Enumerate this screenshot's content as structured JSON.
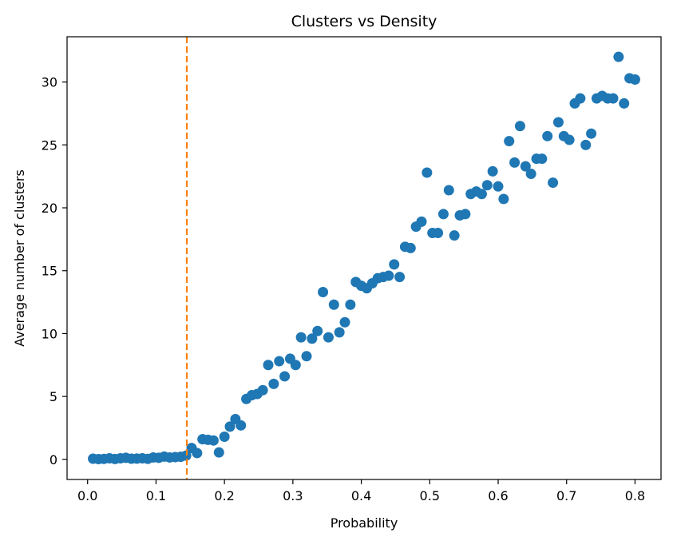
{
  "chart_data": {
    "type": "scatter",
    "title": "Clusters vs Density",
    "xlabel": "Probability",
    "ylabel": "Average number of clusters",
    "xlim": [
      -0.03,
      0.838
    ],
    "ylim": [
      -1.6,
      33.6
    ],
    "xticks": [
      0.0,
      0.1,
      0.2,
      0.3,
      0.4,
      0.5,
      0.6,
      0.7,
      0.8
    ],
    "xtick_labels": [
      "0.0",
      "0.1",
      "0.2",
      "0.3",
      "0.4",
      "0.5",
      "0.6",
      "0.7",
      "0.8"
    ],
    "yticks": [
      0,
      5,
      10,
      15,
      20,
      25,
      30
    ],
    "ytick_labels": [
      "0",
      "5",
      "10",
      "15",
      "20",
      "25",
      "30"
    ],
    "grid": false,
    "threshold_line": {
      "x": 0.145,
      "style": "dashed",
      "color": "#ff7f0e"
    },
    "series": [
      {
        "color": "#1f77b4",
        "points": [
          [
            0.008,
            0.05
          ],
          [
            0.016,
            0.02
          ],
          [
            0.024,
            0.04
          ],
          [
            0.032,
            0.08
          ],
          [
            0.04,
            0.03
          ],
          [
            0.048,
            0.08
          ],
          [
            0.056,
            0.12
          ],
          [
            0.064,
            0.05
          ],
          [
            0.072,
            0.06
          ],
          [
            0.08,
            0.08
          ],
          [
            0.088,
            0.04
          ],
          [
            0.096,
            0.15
          ],
          [
            0.104,
            0.12
          ],
          [
            0.112,
            0.22
          ],
          [
            0.12,
            0.15
          ],
          [
            0.128,
            0.18
          ],
          [
            0.136,
            0.2
          ],
          [
            0.144,
            0.3
          ],
          [
            0.152,
            0.9
          ],
          [
            0.16,
            0.5
          ],
          [
            0.168,
            1.6
          ],
          [
            0.176,
            1.55
          ],
          [
            0.184,
            1.5
          ],
          [
            0.192,
            0.55
          ],
          [
            0.2,
            1.8
          ],
          [
            0.208,
            2.6
          ],
          [
            0.216,
            3.2
          ],
          [
            0.224,
            2.7
          ],
          [
            0.232,
            4.8
          ],
          [
            0.24,
            5.1
          ],
          [
            0.248,
            5.2
          ],
          [
            0.256,
            5.5
          ],
          [
            0.264,
            7.5
          ],
          [
            0.272,
            6.0
          ],
          [
            0.28,
            7.8
          ],
          [
            0.288,
            6.6
          ],
          [
            0.296,
            8.0
          ],
          [
            0.304,
            7.5
          ],
          [
            0.312,
            9.7
          ],
          [
            0.32,
            8.2
          ],
          [
            0.328,
            9.6
          ],
          [
            0.336,
            10.2
          ],
          [
            0.344,
            13.3
          ],
          [
            0.352,
            9.7
          ],
          [
            0.36,
            12.3
          ],
          [
            0.368,
            10.1
          ],
          [
            0.376,
            10.9
          ],
          [
            0.384,
            12.3
          ],
          [
            0.392,
            14.1
          ],
          [
            0.4,
            13.8
          ],
          [
            0.408,
            13.6
          ],
          [
            0.416,
            14.0
          ],
          [
            0.424,
            14.4
          ],
          [
            0.432,
            14.5
          ],
          [
            0.44,
            14.6
          ],
          [
            0.448,
            15.5
          ],
          [
            0.456,
            14.5
          ],
          [
            0.464,
            16.9
          ],
          [
            0.472,
            16.8
          ],
          [
            0.48,
            18.5
          ],
          [
            0.488,
            18.9
          ],
          [
            0.496,
            22.8
          ],
          [
            0.504,
            18.0
          ],
          [
            0.512,
            18.0
          ],
          [
            0.52,
            19.5
          ],
          [
            0.528,
            21.4
          ],
          [
            0.536,
            17.8
          ],
          [
            0.544,
            19.4
          ],
          [
            0.552,
            19.5
          ],
          [
            0.56,
            21.1
          ],
          [
            0.568,
            21.3
          ],
          [
            0.576,
            21.1
          ],
          [
            0.584,
            21.8
          ],
          [
            0.592,
            22.9
          ],
          [
            0.6,
            21.7
          ],
          [
            0.608,
            20.7
          ],
          [
            0.616,
            25.3
          ],
          [
            0.624,
            23.6
          ],
          [
            0.632,
            26.5
          ],
          [
            0.64,
            23.3
          ],
          [
            0.648,
            22.7
          ],
          [
            0.656,
            23.9
          ],
          [
            0.664,
            23.9
          ],
          [
            0.672,
            25.7
          ],
          [
            0.68,
            22.0
          ],
          [
            0.688,
            26.8
          ],
          [
            0.696,
            25.7
          ],
          [
            0.704,
            25.4
          ],
          [
            0.712,
            28.3
          ],
          [
            0.72,
            28.7
          ],
          [
            0.728,
            25.0
          ],
          [
            0.736,
            25.9
          ],
          [
            0.744,
            28.7
          ],
          [
            0.752,
            28.9
          ],
          [
            0.76,
            28.7
          ],
          [
            0.768,
            28.7
          ],
          [
            0.776,
            32.0
          ],
          [
            0.784,
            28.3
          ],
          [
            0.792,
            30.3
          ],
          [
            0.8,
            30.2
          ]
        ]
      }
    ]
  }
}
